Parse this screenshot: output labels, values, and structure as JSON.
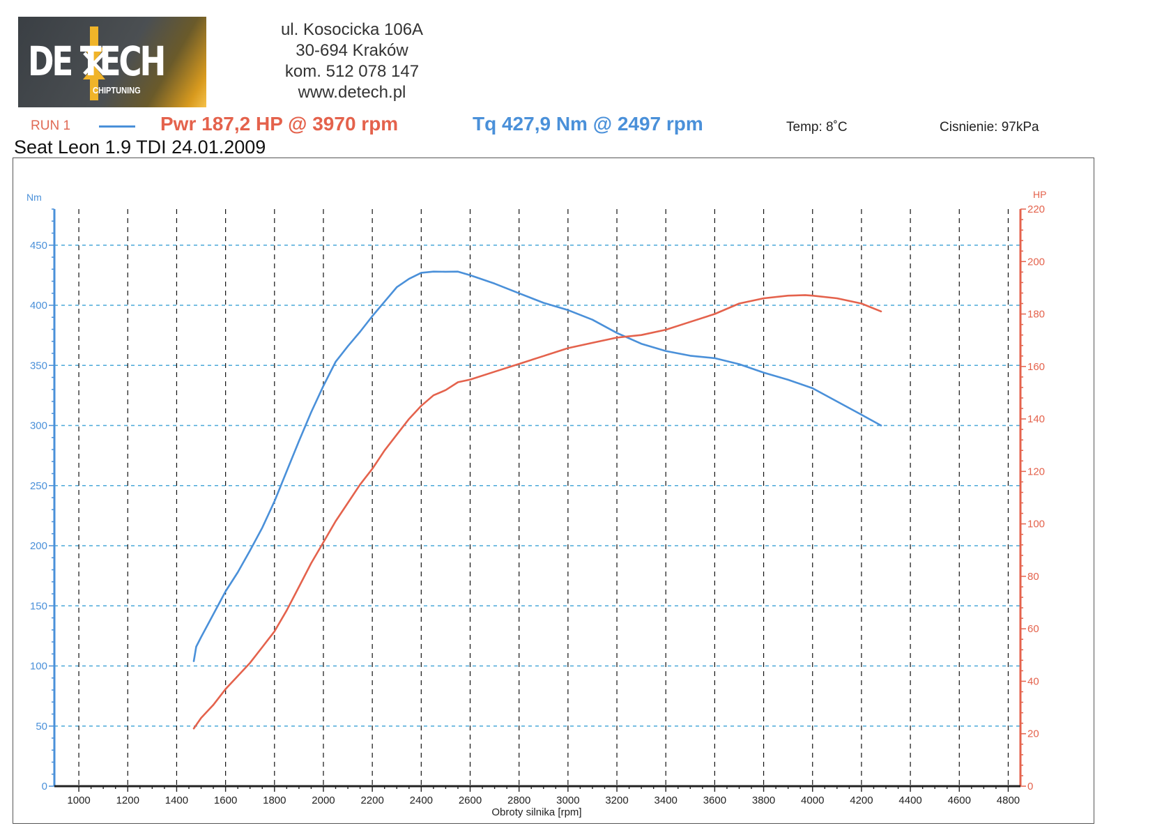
{
  "logo": {
    "brand": "DE TECH",
    "sub": "CHIPTUNING"
  },
  "address": [
    "ul. Kosocicka 106A",
    "30-694 Kraków",
    "kom. 512 078 147",
    "www.detech.pl"
  ],
  "header": {
    "run": "RUN 1",
    "power": "Pwr 187,2 HP @ 3970 rpm",
    "torque": "Tq 427,9 Nm @ 2497 rpm",
    "temp": "Temp: 8˚C",
    "pressure": "Cisnienie: 97kPa"
  },
  "car": "Seat Leon  1.9 TDI   24.01.2009",
  "colors": {
    "torque": "#4a90d9",
    "power": "#e4624c",
    "grid_h": "#4aa8d8",
    "grid_v": "#111111"
  },
  "chart_data": {
    "type": "line",
    "xlabel": "Obroty silnika [rpm]",
    "ylabel_left": "Nm",
    "ylabel_right": "HP",
    "xlim": [
      900,
      4850
    ],
    "ylim_left": [
      0,
      480
    ],
    "ylim_right": [
      0,
      220
    ],
    "x_ticks": [
      1000,
      1200,
      1400,
      1600,
      1800,
      2000,
      2200,
      2400,
      2600,
      2800,
      3000,
      3200,
      3400,
      3600,
      3800,
      4000,
      4200,
      4400,
      4600,
      4800
    ],
    "y_ticks_left": [
      0,
      50,
      100,
      150,
      200,
      250,
      300,
      350,
      400,
      450
    ],
    "y_ticks_right": [
      0,
      20,
      40,
      60,
      80,
      100,
      120,
      140,
      160,
      180,
      200,
      220
    ],
    "grid": true,
    "series": [
      {
        "axis": "left",
        "x": [
          1470,
          1480,
          1500,
          1550,
          1600,
          1650,
          1700,
          1750,
          1800,
          1850,
          1900,
          1950,
          2000,
          2050,
          2100,
          2150,
          2200,
          2250,
          2300,
          2350,
          2400,
          2450,
          2497,
          2550,
          2600,
          2700,
          2800,
          2900,
          3000,
          3100,
          3200,
          3300,
          3400,
          3500,
          3600,
          3700,
          3800,
          3900,
          4000,
          4100,
          4200,
          4280
        ],
        "values": [
          104,
          116,
          124,
          143,
          162,
          178,
          196,
          215,
          237,
          262,
          287,
          311,
          333,
          353,
          366,
          378,
          391,
          403,
          415,
          422,
          427,
          428,
          427.9,
          428,
          425,
          418,
          410,
          402,
          396,
          388,
          377,
          368,
          362,
          358,
          356,
          351,
          344,
          338,
          331,
          320,
          309,
          300
        ]
      },
      {
        "axis": "right",
        "x": [
          1470,
          1500,
          1550,
          1600,
          1650,
          1700,
          1750,
          1800,
          1850,
          1900,
          1950,
          2000,
          2050,
          2100,
          2150,
          2200,
          2250,
          2300,
          2350,
          2400,
          2450,
          2500,
          2550,
          2600,
          2700,
          2800,
          2900,
          3000,
          3100,
          3200,
          3300,
          3400,
          3500,
          3600,
          3700,
          3800,
          3900,
          3970,
          4000,
          4100,
          4200,
          4280
        ],
        "values": [
          22,
          26,
          31,
          37,
          42,
          47,
          53,
          59,
          67,
          76,
          85,
          93,
          101,
          108,
          115,
          121,
          128,
          134,
          140,
          145,
          149,
          151,
          154,
          155,
          158,
          161,
          164,
          167,
          169,
          171,
          172,
          174,
          177,
          180,
          184,
          186,
          187,
          187.2,
          187,
          186,
          184,
          181
        ]
      }
    ]
  }
}
